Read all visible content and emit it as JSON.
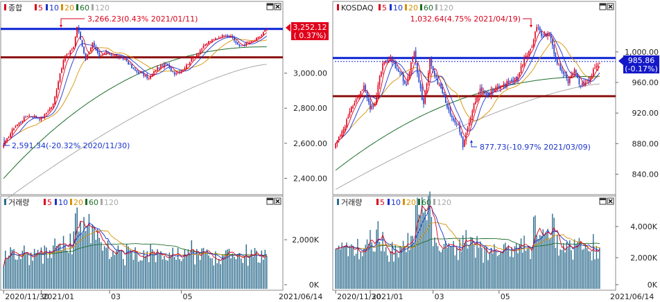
{
  "colors": {
    "candle_up": "#e0001b",
    "candle_down": "#1f3fd0",
    "ma5": "#d9001b",
    "ma10": "#1a33cc",
    "ma20": "#d89000",
    "ma60": "#1d6e2a",
    "ma120": "#a8a8a8",
    "volume_bar": "#2e6d8e",
    "hline_blue": "#0a22d2",
    "hline_red": "#8a0f0f",
    "price_badge_red": "#e0001b",
    "price_badge_blue": "#1418c8"
  },
  "panels": {
    "kospi": {
      "legend": {
        "name": "종합",
        "ma": [
          "5",
          "10",
          "20",
          "60",
          "120"
        ]
      },
      "volume_legend": {
        "name": "거래량",
        "ma": [
          "5",
          "10",
          "20",
          "60",
          "120"
        ]
      },
      "price_badge": {
        "value": "3,252.12",
        "change": "( 0.37%)"
      },
      "annotations": {
        "high": "3,266.23(0.43% 2021/01/11)",
        "low": "2,591.34(-20.32% 2020/11/30)"
      },
      "volume_ticks": [
        "2,000K",
        "0K"
      ],
      "x_ticks": [
        "2020/11/30",
        "2021/01",
        "03",
        "05"
      ],
      "end_date": "2021/06/14"
    },
    "kosdaq": {
      "legend": {
        "name": "KOSDAQ",
        "ma": [
          "5",
          "10",
          "20",
          "60",
          "120"
        ]
      },
      "volume_legend": {
        "name": "거래량",
        "ma": [
          "5",
          "10",
          "20",
          "60",
          "120"
        ]
      },
      "price_badge": {
        "value": "985.86",
        "change": "(-0.17%)"
      },
      "annotations": {
        "high": "1,032.64(4.75% 2021/04/19)",
        "low": "877.73(-10.97% 2021/03/09)"
      },
      "volume_ticks": [
        "4,000K",
        "2,000K",
        "0K"
      ],
      "x_ticks": [
        "2020/11/30",
        "2021/01",
        "03",
        "05"
      ],
      "end_date": "2021/06/14"
    }
  },
  "chart_data": [
    {
      "type": "candlestick",
      "name": "종합",
      "ylim": [
        2315,
        3330
      ],
      "y_ticks": [
        "3,000.00",
        "2,800.00",
        "2,600.00",
        "2,400.00"
      ],
      "y_tick_values": [
        3000,
        2800,
        2600,
        2400
      ],
      "hlines": [
        3252,
        3090
      ],
      "x_range": [
        "2020/11/30",
        "2021/06/14"
      ],
      "close_keypoints": [
        [
          0,
          2591
        ],
        [
          6,
          2690
        ],
        [
          14,
          2760
        ],
        [
          22,
          2740
        ],
        [
          29,
          2820
        ],
        [
          33,
          3000
        ],
        [
          36,
          3100
        ],
        [
          38,
          3110
        ],
        [
          41,
          3150
        ],
        [
          43,
          3266
        ],
        [
          48,
          3080
        ],
        [
          52,
          3170
        ],
        [
          56,
          3090
        ],
        [
          60,
          3120
        ],
        [
          65,
          3100
        ],
        [
          71,
          3080
        ],
        [
          76,
          3020
        ],
        [
          80,
          3000
        ],
        [
          85,
          2970
        ],
        [
          90,
          3030
        ],
        [
          95,
          3050
        ],
        [
          100,
          3000
        ],
        [
          105,
          3020
        ],
        [
          110,
          3080
        ],
        [
          115,
          3130
        ],
        [
          120,
          3180
        ],
        [
          125,
          3200
        ],
        [
          130,
          3220
        ],
        [
          134,
          3200
        ],
        [
          138,
          3150
        ],
        [
          142,
          3170
        ],
        [
          146,
          3180
        ],
        [
          150,
          3210
        ],
        [
          154,
          3252
        ]
      ],
      "ma_levels": {
        "60_start": 2400,
        "60_end": 3150,
        "120_start": 2270,
        "120_end": 3050
      },
      "volume_scale_max": 3300
    },
    {
      "type": "candlestick",
      "name": "KOSDAQ",
      "ylim": [
        815,
        1048
      ],
      "y_ticks": [
        "1,000.00",
        "960.00",
        "920.00",
        "880.00",
        "840.00"
      ],
      "y_tick_values": [
        1000,
        960,
        920,
        880,
        840
      ],
      "hlines": [
        992,
        942
      ],
      "x_range": [
        "2020/11/30",
        "2021/06/14"
      ],
      "close_keypoints": [
        [
          0,
          880
        ],
        [
          6,
          905
        ],
        [
          12,
          935
        ],
        [
          18,
          955
        ],
        [
          22,
          925
        ],
        [
          25,
          935
        ],
        [
          30,
          985
        ],
        [
          35,
          990
        ],
        [
          40,
          975
        ],
        [
          45,
          955
        ],
        [
          48,
          985
        ],
        [
          50,
          998
        ],
        [
          53,
          960
        ],
        [
          56,
          930
        ],
        [
          60,
          990
        ],
        [
          62,
          975
        ],
        [
          66,
          955
        ],
        [
          70,
          935
        ],
        [
          74,
          915
        ],
        [
          78,
          905
        ],
        [
          81,
          878
        ],
        [
          85,
          905
        ],
        [
          88,
          930
        ],
        [
          92,
          950
        ],
        [
          96,
          945
        ],
        [
          100,
          950
        ],
        [
          105,
          955
        ],
        [
          110,
          960
        ],
        [
          115,
          965
        ],
        [
          120,
          990
        ],
        [
          125,
          1010
        ],
        [
          128,
          1032
        ],
        [
          132,
          1020
        ],
        [
          136,
          1025
        ],
        [
          140,
          990
        ],
        [
          144,
          975
        ],
        [
          148,
          960
        ],
        [
          152,
          975
        ],
        [
          156,
          955
        ],
        [
          160,
          960
        ],
        [
          164,
          975
        ],
        [
          168,
          985
        ]
      ],
      "ma_levels": {
        "60_start": 845,
        "60_end": 968,
        "120_start": 820,
        "120_end": 958
      },
      "volume_scale_max": 5200
    }
  ]
}
